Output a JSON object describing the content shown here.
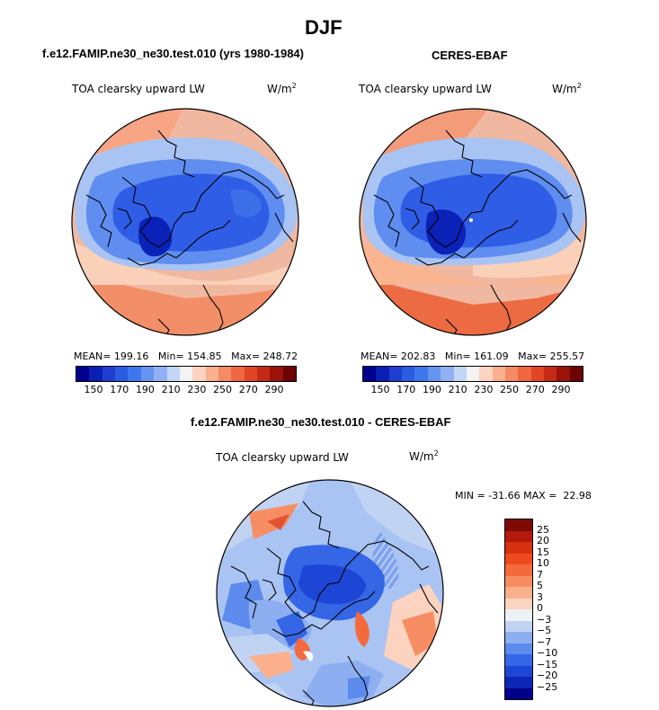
{
  "figure": {
    "title": "DJF",
    "panel_left": {
      "case_title": "f.e12.FAMIP.ne30_ne30.test.010 (yrs 1980-1984)",
      "variable": "TOA clearsky upward LW",
      "unit": "W/m",
      "unit_exp": "2",
      "stats": {
        "mean": "MEAN= 199.16",
        "min": "Min= 154.85",
        "max": "Max= 248.72"
      }
    },
    "panel_right": {
      "case_title": "CERES-EBAF",
      "variable": "TOA clearsky upward LW",
      "unit": "W/m",
      "unit_exp": "2",
      "stats": {
        "mean": "MEAN= 202.83",
        "min": "Min= 161.09",
        "max": "Max= 255.57"
      }
    },
    "panel_diff": {
      "case_title": "f.e12.FAMIP.ne30_ne30.test.010 - CERES-EBAF",
      "variable": "TOA clearsky upward LW",
      "unit": "W/m",
      "unit_exp": "2",
      "minmax": "MIN = -31.66 MAX =  22.98"
    },
    "abs_colorbar": {
      "tick_labels": [
        "150",
        "170",
        "190",
        "210",
        "230",
        "250",
        "270",
        "290"
      ],
      "colors": [
        "#00008b",
        "#0a1fb4",
        "#1f3fd0",
        "#2a5ce2",
        "#3d77ee",
        "#6594f0",
        "#90b2f2",
        "#c2d6f6",
        "#f3f3f3",
        "#fbd3c0",
        "#f9b08f",
        "#f58a64",
        "#f06640",
        "#e14526",
        "#c52a16",
        "#9a1208",
        "#6d0303"
      ]
    },
    "diff_colorbar": {
      "tick_labels": [
        "25",
        "20",
        "15",
        "10",
        "7",
        "5",
        "3",
        "0",
        "−3",
        "−5",
        "−7",
        "−10",
        "−15",
        "−20",
        "−25"
      ],
      "colors": [
        "#7e0a05",
        "#b31a0b",
        "#d7300f",
        "#ee4a1f",
        "#f46a3c",
        "#f78e63",
        "#fab08d",
        "#fcd3bf",
        "#eef1f6",
        "#c1d3f3",
        "#8daef0",
        "#5c8bed",
        "#3466e6",
        "#1e46d6",
        "#0c27b6",
        "#00008b"
      ]
    },
    "map_colors": {
      "deep": "#0a22b8",
      "blue": "#2f5de6",
      "mid": "#5f8ef0",
      "light": "#a9c4f3",
      "neutral": "#eef1f6",
      "peach": "#fbcfb6",
      "orange": "#f58f66",
      "red": "#e5532e"
    }
  }
}
